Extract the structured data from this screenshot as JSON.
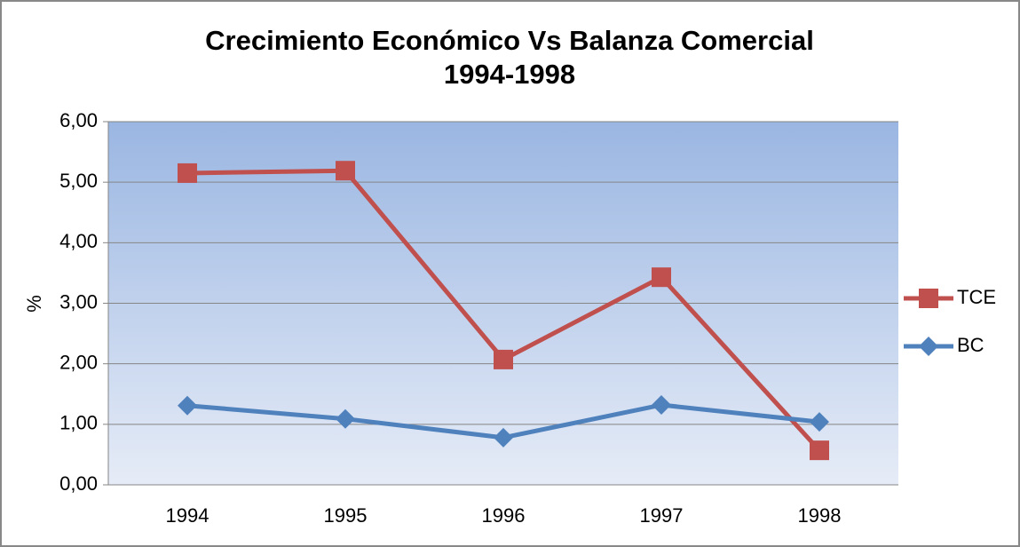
{
  "chart_data": {
    "type": "line",
    "title": [
      "Crecimiento Económico Vs Balanza Comercial",
      "1994-1998"
    ],
    "y_label": "%",
    "categories": [
      "1994",
      "1995",
      "1996",
      "1997",
      "1998"
    ],
    "series": [
      {
        "name": "TCE",
        "color": "#c0504d",
        "marker": "square",
        "values": [
          5.15,
          5.19,
          2.07,
          3.43,
          0.57
        ]
      },
      {
        "name": "BC",
        "color": "#4f81bd",
        "marker": "diamond",
        "values": [
          1.31,
          1.09,
          0.78,
          1.32,
          1.04
        ]
      }
    ],
    "ylim": [
      0,
      6
    ],
    "yticks": [
      {
        "value": 0,
        "label": "0,00"
      },
      {
        "value": 1,
        "label": "1,00"
      },
      {
        "value": 2,
        "label": "2,00"
      },
      {
        "value": 3,
        "label": "3,00"
      },
      {
        "value": 4,
        "label": "4,00"
      },
      {
        "value": 5,
        "label": "5,00"
      },
      {
        "value": 6,
        "label": "6,00"
      }
    ],
    "grid": true,
    "legend": "right"
  }
}
